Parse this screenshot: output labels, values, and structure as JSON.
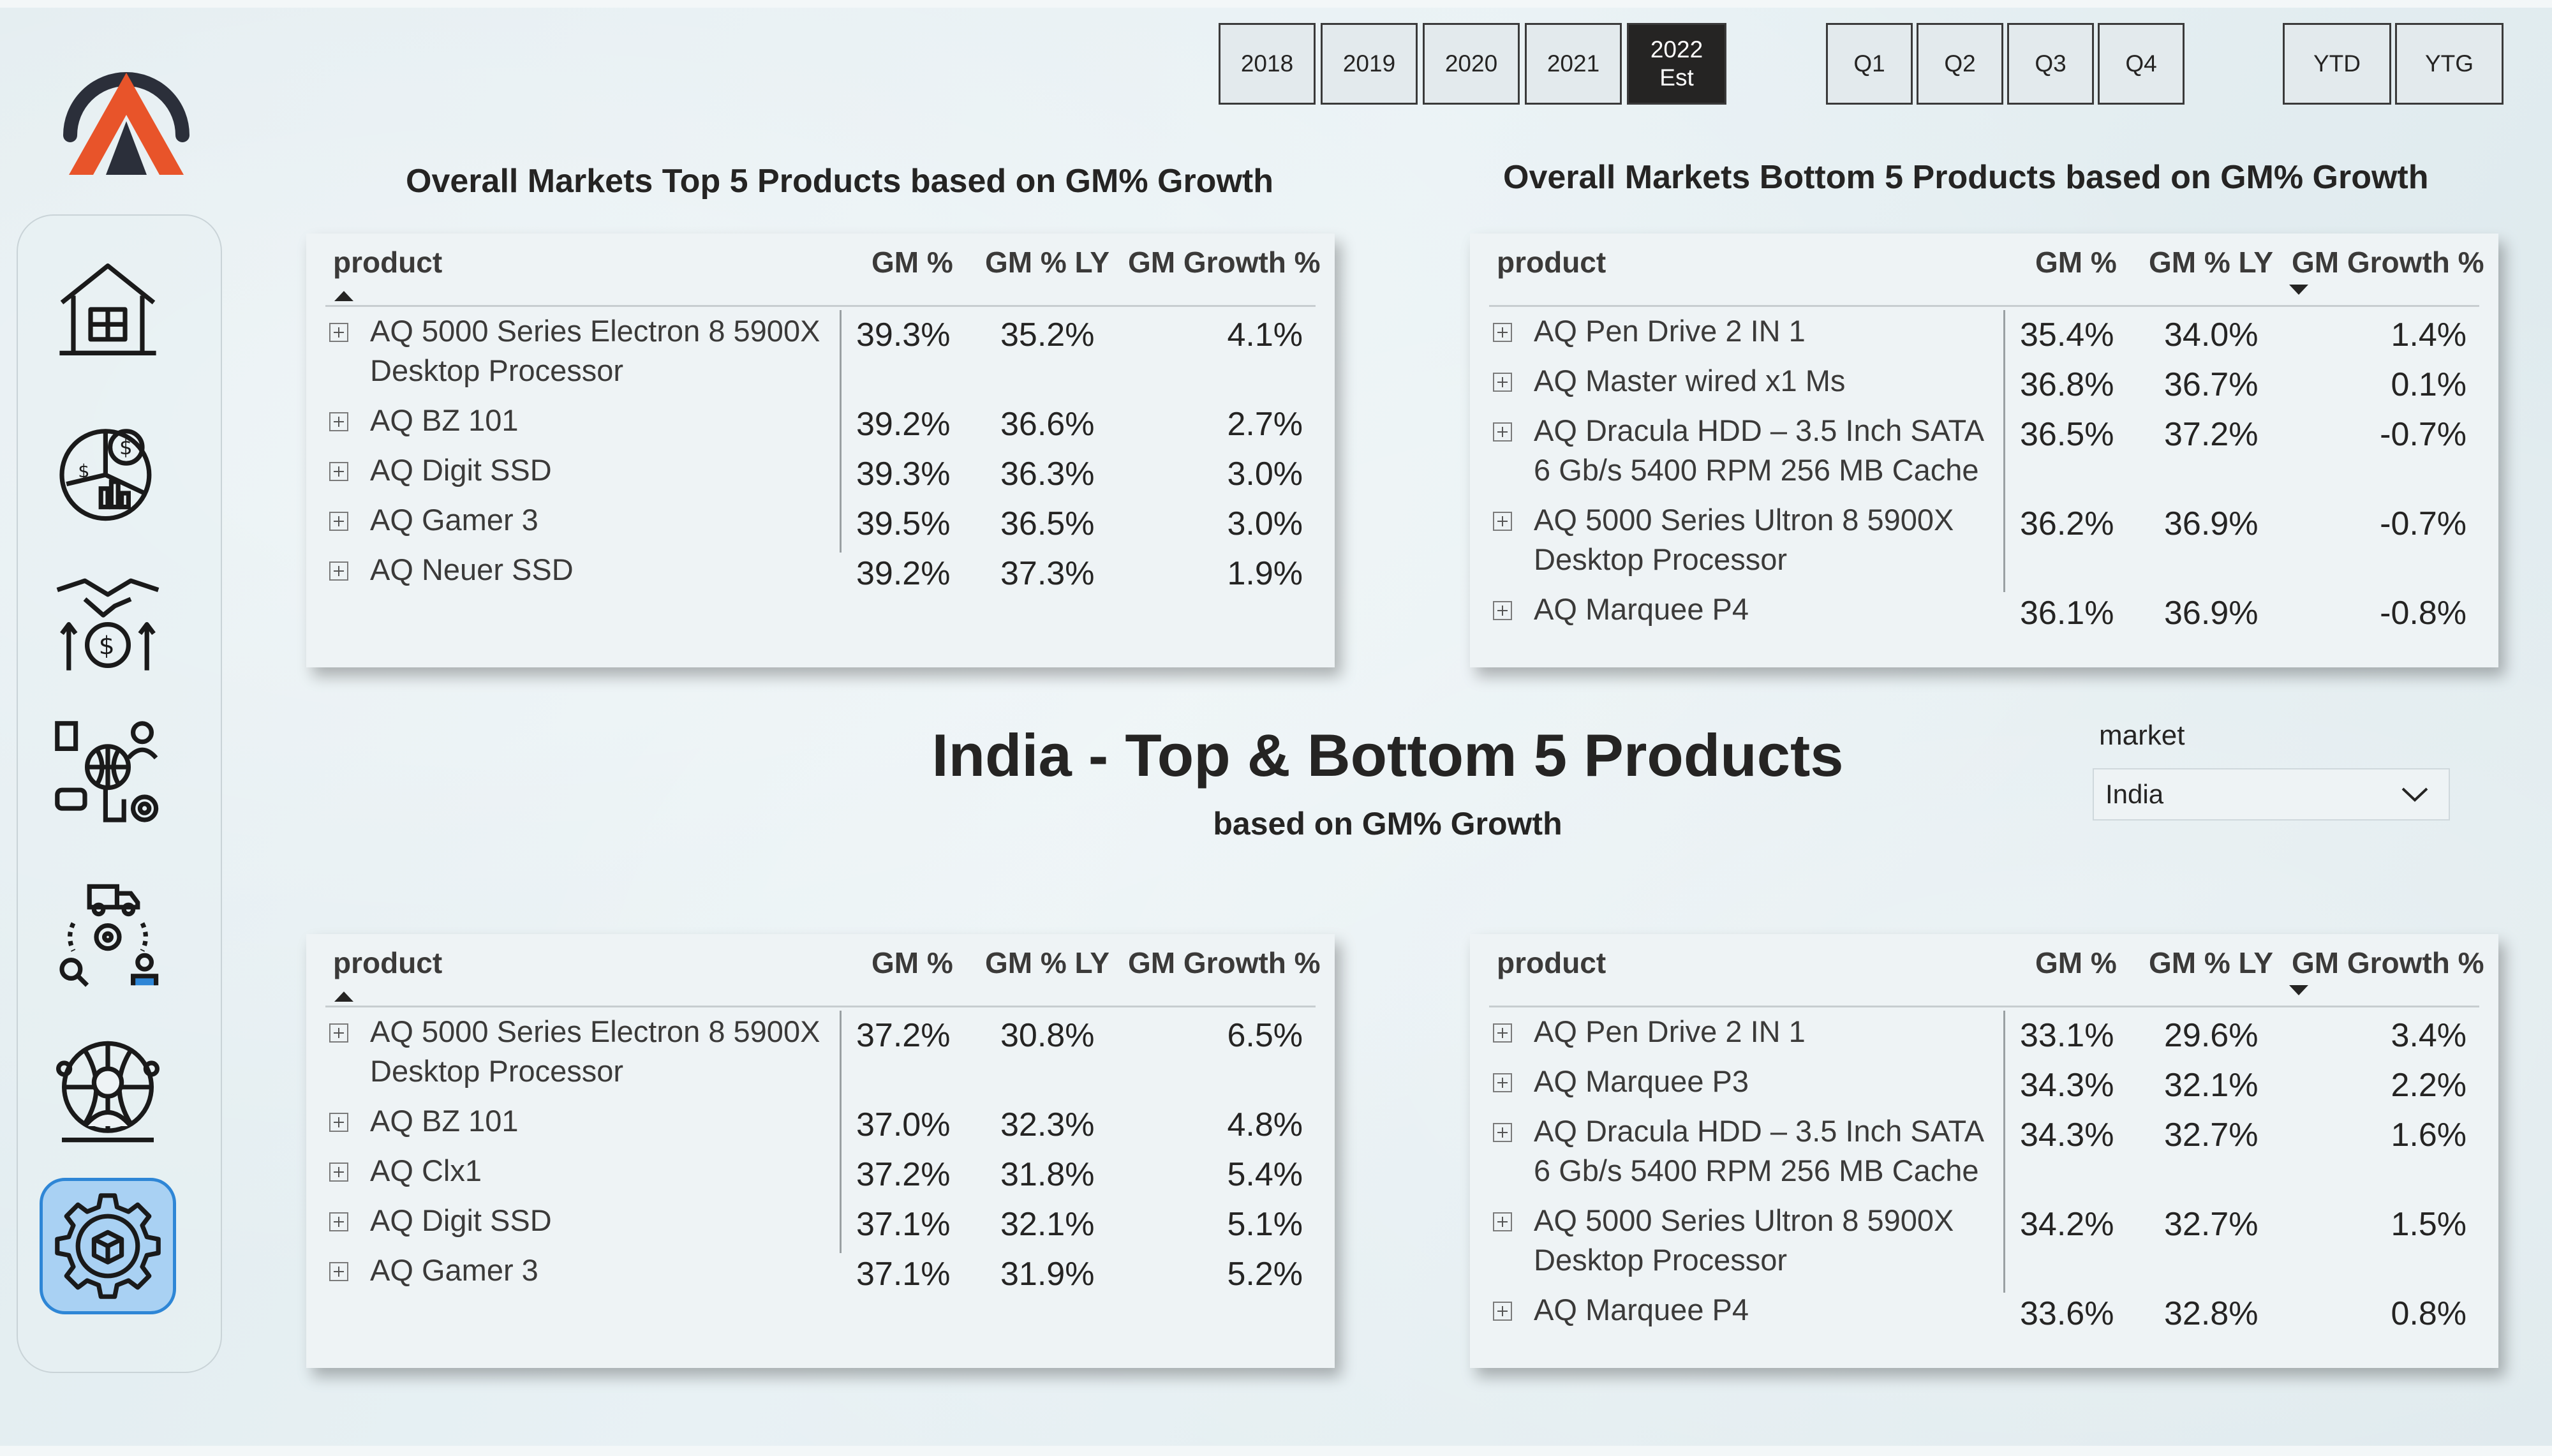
{
  "filters": {
    "years": [
      {
        "label": "2018",
        "selected": false
      },
      {
        "label": "2019",
        "selected": false
      },
      {
        "label": "2020",
        "selected": false
      },
      {
        "label": "2021",
        "selected": false
      },
      {
        "label": "2022\nEst",
        "selected": true
      }
    ],
    "quarters": [
      "Q1",
      "Q2",
      "Q3",
      "Q4"
    ],
    "period": [
      "YTD",
      "YTG"
    ]
  },
  "nav": [
    {
      "icon": "home-icon",
      "active": false
    },
    {
      "icon": "finance-pie-chart-icon",
      "active": false
    },
    {
      "icon": "sales-handshake-icon",
      "active": false
    },
    {
      "icon": "marketing-globe-icon",
      "active": false
    },
    {
      "icon": "supply-chain-icon",
      "active": false
    },
    {
      "icon": "executive-globe-icon",
      "active": false
    },
    {
      "icon": "product-gear-icon",
      "active": true
    }
  ],
  "colors": {
    "selected_slicer": "#252423",
    "active_nav": "#a9d1f3",
    "active_nav_border": "#2e86d6"
  },
  "titles": {
    "overall_top": "Overall Markets Top 5 Products based on GM% Growth",
    "overall_bottom": "Overall Markets Bottom 5 Products based on GM% Growth",
    "india_main": "India - Top & Bottom 5 Products",
    "india_sub": "based on GM% Growth"
  },
  "market_slicer": {
    "label": "market",
    "value": "India"
  },
  "columns": {
    "product": "product",
    "gm": "GM %",
    "gm_ly": "GM % LY",
    "growth": "GM Growth %"
  },
  "tables": [
    {
      "name": "overall-top-table",
      "sort": "product-asc",
      "rows": [
        {
          "product": "AQ 5000 Series Electron 8 5900X Desktop Processor",
          "gm": "39.3%",
          "gm_ly": "35.2%",
          "growth": "4.1%",
          "lines": 2
        },
        {
          "product": "AQ BZ 101",
          "gm": "39.2%",
          "gm_ly": "36.6%",
          "growth": "2.7%",
          "lines": 1
        },
        {
          "product": "AQ Digit SSD",
          "gm": "39.3%",
          "gm_ly": "36.3%",
          "growth": "3.0%",
          "lines": 1
        },
        {
          "product": "AQ Gamer 3",
          "gm": "39.5%",
          "gm_ly": "36.5%",
          "growth": "3.0%",
          "lines": 1
        },
        {
          "product": "AQ Neuer SSD",
          "gm": "39.2%",
          "gm_ly": "37.3%",
          "growth": "1.9%",
          "lines": 1
        }
      ]
    },
    {
      "name": "overall-bottom-table",
      "sort": "growth-desc",
      "rows": [
        {
          "product": "AQ Pen Drive 2 IN 1",
          "gm": "35.4%",
          "gm_ly": "34.0%",
          "growth": "1.4%",
          "lines": 1
        },
        {
          "product": "AQ Master wired x1 Ms",
          "gm": "36.8%",
          "gm_ly": "36.7%",
          "growth": "0.1%",
          "lines": 1
        },
        {
          "product": "AQ Dracula HDD – 3.5 Inch SATA 6 Gb/s 5400 RPM 256 MB Cache",
          "gm": "36.5%",
          "gm_ly": "37.2%",
          "growth": "-0.7%",
          "lines": 2
        },
        {
          "product": "AQ 5000 Series Ultron 8 5900X Desktop Processor",
          "gm": "36.2%",
          "gm_ly": "36.9%",
          "growth": "-0.7%",
          "lines": 2
        },
        {
          "product": "AQ Marquee P4",
          "gm": "36.1%",
          "gm_ly": "36.9%",
          "growth": "-0.8%",
          "lines": 1
        }
      ]
    },
    {
      "name": "india-top-table",
      "sort": "product-asc",
      "rows": [
        {
          "product": "AQ 5000 Series Electron 8 5900X Desktop Processor",
          "gm": "37.2%",
          "gm_ly": "30.8%",
          "growth": "6.5%",
          "lines": 2
        },
        {
          "product": "AQ BZ 101",
          "gm": "37.0%",
          "gm_ly": "32.3%",
          "growth": "4.8%",
          "lines": 1
        },
        {
          "product": "AQ Clx1",
          "gm": "37.2%",
          "gm_ly": "31.8%",
          "growth": "5.4%",
          "lines": 1
        },
        {
          "product": "AQ Digit SSD",
          "gm": "37.1%",
          "gm_ly": "32.1%",
          "growth": "5.1%",
          "lines": 1
        },
        {
          "product": "AQ Gamer 3",
          "gm": "37.1%",
          "gm_ly": "31.9%",
          "growth": "5.2%",
          "lines": 1
        }
      ]
    },
    {
      "name": "india-bottom-table",
      "sort": "growth-desc",
      "rows": [
        {
          "product": "AQ Pen Drive 2 IN 1",
          "gm": "33.1%",
          "gm_ly": "29.6%",
          "growth": "3.4%",
          "lines": 1
        },
        {
          "product": "AQ Marquee P3",
          "gm": "34.3%",
          "gm_ly": "32.1%",
          "growth": "2.2%",
          "lines": 1
        },
        {
          "product": "AQ Dracula HDD – 3.5 Inch SATA 6 Gb/s 5400 RPM 256 MB Cache",
          "gm": "34.3%",
          "gm_ly": "32.7%",
          "growth": "1.6%",
          "lines": 2
        },
        {
          "product": "AQ 5000 Series Ultron 8 5900X Desktop Processor",
          "gm": "34.2%",
          "gm_ly": "32.7%",
          "growth": "1.5%",
          "lines": 2
        },
        {
          "product": "AQ Marquee P4",
          "gm": "33.6%",
          "gm_ly": "32.8%",
          "growth": "0.8%",
          "lines": 1
        }
      ]
    }
  ]
}
